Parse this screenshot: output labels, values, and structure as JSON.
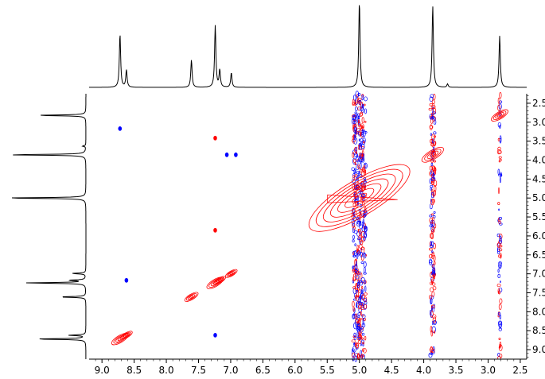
{
  "chart_data": {
    "type": "heatmap",
    "subtype": "2d-nmr-contour",
    "title": "",
    "xlabel": "",
    "ylabel": "",
    "x_axis": {
      "range": [
        9.2,
        2.4
      ],
      "direction": "reversed",
      "ticks": [
        "9.0",
        "8.5",
        "8.0",
        "7.5",
        "7.0",
        "6.5",
        "6.0",
        "5.5",
        "5.0",
        "4.5",
        "4.0",
        "3.5",
        "3.0",
        "2.5"
      ]
    },
    "y_axis": {
      "range": [
        2.25,
        9.25
      ],
      "direction": "down",
      "position": "right",
      "ticks": [
        "2.5",
        "3.0",
        "3.5",
        "4.0",
        "4.5",
        "5.0",
        "5.5",
        "6.0",
        "6.5",
        "7.0",
        "7.5",
        "8.0",
        "8.5",
        "9.0"
      ]
    },
    "projection_peaks": [
      {
        "ppm": 8.72,
        "height": 0.62
      },
      {
        "ppm": 8.62,
        "height": 0.2
      },
      {
        "ppm": 7.61,
        "height": 0.32
      },
      {
        "ppm": 7.24,
        "height": 0.72
      },
      {
        "ppm": 7.17,
        "height": 0.2
      },
      {
        "ppm": 6.99,
        "height": 0.17
      },
      {
        "ppm": 5.0,
        "height": 1.0
      },
      {
        "ppm": 3.86,
        "height": 0.95
      },
      {
        "ppm": 3.63,
        "height": 0.04
      },
      {
        "ppm": 2.82,
        "height": 0.6
      }
    ],
    "diagonal_peaks": [
      {
        "ppm": 8.72,
        "size": 1.0
      },
      {
        "ppm": 8.62,
        "size": 0.7
      },
      {
        "ppm": 7.61,
        "size": 0.8
      },
      {
        "ppm": 7.24,
        "size": 1.0
      },
      {
        "ppm": 7.17,
        "size": 0.7
      },
      {
        "ppm": 6.99,
        "size": 0.7
      },
      {
        "ppm": 5.0,
        "size": 1.6
      },
      {
        "ppm": 3.86,
        "size": 1.3
      },
      {
        "ppm": 2.82,
        "size": 1.0
      }
    ],
    "cross_peaks": [
      {
        "x": 6.92,
        "y": 3.86,
        "color": "blue"
      },
      {
        "x": 7.06,
        "y": 3.86,
        "color": "blue"
      },
      {
        "x": 8.62,
        "y": 7.17,
        "color": "blue"
      },
      {
        "x": 8.72,
        "y": 3.17,
        "color": "blue"
      },
      {
        "x": 7.24,
        "y": 8.62,
        "color": "blue"
      },
      {
        "x": 7.24,
        "y": 3.42,
        "color": "red"
      },
      {
        "x": 7.24,
        "y": 5.85,
        "color": "red"
      }
    ],
    "solvent_streaks_ppm": [
      5.0,
      3.86,
      2.82
    ],
    "colors": {
      "positive": "#ff0000",
      "negative": "#0000ff",
      "projection": "#000000",
      "axis": "#000000"
    },
    "grid": false
  }
}
